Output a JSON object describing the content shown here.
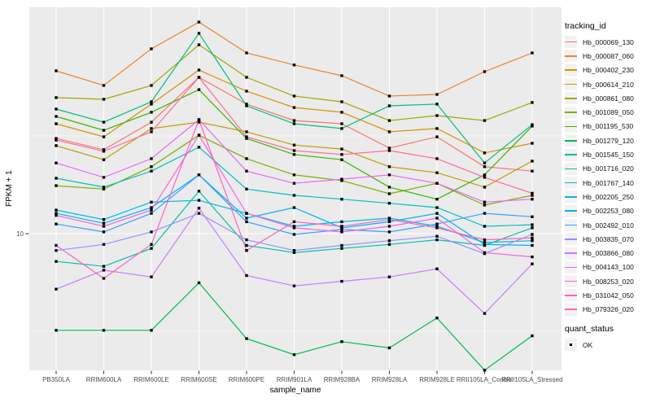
{
  "figure": {
    "y_axis": {
      "label": "FPKM + 1",
      "tick_label": "10"
    },
    "x_axis": {
      "label": "sample_name"
    },
    "legend": {
      "tracking_title": "tracking_id",
      "quant_title": "quant_status",
      "quant_items": [
        "OK"
      ]
    },
    "colors": {
      "panel_bg": "#EBEBEB",
      "grid_major": "#FFFFFF",
      "grid_minor": "#F7F7F7",
      "tick_mark": "#333333",
      "axis_text": "#4D4D4D",
      "title_text": "#000000",
      "point": "#000000",
      "legend_key_bg": "#F2F2F2"
    }
  },
  "chart_data": {
    "type": "line",
    "x_type": "categorical",
    "y_scale": "log10",
    "title": "",
    "xlabel": "sample_name",
    "ylabel": "FPKM + 1",
    "y_ticks": [
      10
    ],
    "y_minor_ticks": [
      3.162,
      31.62
    ],
    "ylim_approx": [
      2.0,
      145
    ],
    "grid": "ggplot-default",
    "legend_position": "right",
    "point_shape": "black-square",
    "quant_status": {
      "title": "quant_status",
      "values": [
        "OK"
      ]
    },
    "categories": [
      "PB350LA",
      "RRIM600LA",
      "RRIM600LE",
      "RRIM600SE",
      "RRIM600PE",
      "RRIM901LA",
      "RRIM928BA",
      "RRIM928LA",
      "RRIM928LE",
      "RRII105LA_Control",
      "RRII105LA_Stressed"
    ],
    "series": [
      {
        "name": "Hb_000069_130",
        "color": "#F8766D",
        "values": [
          30.7,
          26.9,
          37.2,
          63.1,
          46.0,
          37.9,
          36.5,
          27.4,
          31.3,
          22.0,
          20.9
        ]
      },
      {
        "name": "Hb_000087_060",
        "color": "#EA8331",
        "values": [
          68.1,
          57.3,
          88.3,
          121.0,
          84.1,
          73.0,
          64.3,
          50.6,
          51.6,
          67.5,
          84.1
        ]
      },
      {
        "name": "Hb_000402_230",
        "color": "#D89000",
        "values": [
          36.5,
          31.3,
          46.0,
          68.8,
          53.6,
          44.2,
          41.8,
          33.2,
          34.5,
          25.9,
          29.0
        ]
      },
      {
        "name": "Hb_000614_210",
        "color": "#C09B00",
        "values": [
          28.2,
          23.9,
          34.5,
          37.2,
          33.2,
          28.4,
          27.1,
          22.0,
          20.5,
          17.3,
          23.5
        ]
      },
      {
        "name": "Hb_000861_080",
        "color": "#A3A500",
        "values": [
          49.7,
          48.7,
          57.3,
          92.6,
          63.1,
          50.6,
          47.3,
          37.9,
          40.2,
          37.9,
          46.9
        ]
      },
      {
        "name": "Hb_001089_050",
        "color": "#7CAE00",
        "values": [
          17.6,
          16.9,
          22.0,
          31.9,
          24.2,
          20.0,
          18.7,
          16.0,
          18.1,
          14.0,
          15.7
        ]
      },
      {
        "name": "Hb_001195_530",
        "color": "#39B600",
        "values": [
          39.8,
          33.8,
          41.8,
          54.6,
          30.7,
          25.4,
          23.9,
          17.3,
          15.0,
          20.0,
          35.5
        ]
      },
      {
        "name": "Hb_001279_120",
        "color": "#00BB4E",
        "values": [
          3.2,
          3.2,
          3.2,
          5.6,
          2.9,
          2.4,
          2.8,
          2.6,
          3.7,
          2.0,
          3.0
        ]
      },
      {
        "name": "Hb_001545_150",
        "color": "#00BF7D",
        "values": [
          43.4,
          37.2,
          47.3,
          106.0,
          45.1,
          36.5,
          34.5,
          45.1,
          46.0,
          23.0,
          36.1
        ]
      },
      {
        "name": "Hb_001716_020",
        "color": "#00C1A3",
        "values": [
          7.2,
          6.8,
          8.4,
          16.5,
          8.7,
          8.0,
          8.4,
          8.8,
          9.3,
          8.7,
          10.7
        ]
      },
      {
        "name": "Hb_001767_140",
        "color": "#00BFC4",
        "values": [
          19.2,
          17.3,
          20.9,
          27.7,
          16.9,
          15.7,
          15.0,
          14.3,
          13.6,
          10.9,
          11.1
        ]
      },
      {
        "name": "Hb_002205_250",
        "color": "#00BAE0",
        "values": [
          13.2,
          11.8,
          14.5,
          14.8,
          12.7,
          10.9,
          11.5,
          12.0,
          10.9,
          9.0,
          9.2
        ]
      },
      {
        "name": "Hb_002253_080",
        "color": "#00B0F6",
        "values": [
          12.7,
          11.3,
          13.6,
          20.0,
          12.0,
          13.6,
          10.7,
          11.5,
          12.7,
          8.8,
          8.7
        ]
      },
      {
        "name": "Hb_002492_010",
        "color": "#35A2FF",
        "values": [
          11.2,
          10.2,
          12.7,
          20.0,
          11.5,
          9.9,
          10.5,
          10.2,
          11.2,
          12.7,
          12.2
        ]
      },
      {
        "name": "Hb_003835_070",
        "color": "#9590FF",
        "values": [
          8.2,
          8.8,
          10.2,
          12.7,
          9.3,
          8.2,
          8.7,
          9.2,
          9.7,
          7.9,
          9.9
        ]
      },
      {
        "name": "Hb_003866_080",
        "color": "#C77CFF",
        "values": [
          5.2,
          6.5,
          6.0,
          13.5,
          6.1,
          5.4,
          5.7,
          6.0,
          6.6,
          3.9,
          7.0
        ]
      },
      {
        "name": "Hb_004143_100",
        "color": "#E76BF3",
        "values": [
          23.0,
          19.4,
          24.2,
          38.3,
          20.9,
          18.1,
          19.0,
          20.0,
          18.1,
          14.5,
          15.0
        ]
      },
      {
        "name": "Hb_008253_020",
        "color": "#FA62DB",
        "values": [
          12.4,
          10.9,
          13.2,
          31.9,
          12.7,
          10.7,
          10.2,
          10.9,
          12.0,
          8.0,
          7.6
        ]
      },
      {
        "name": "Hb_031042_050",
        "color": "#FF62BC",
        "values": [
          8.7,
          5.9,
          8.8,
          38.3,
          8.2,
          11.5,
          10.9,
          11.8,
          10.7,
          9.3,
          9.5
        ]
      },
      {
        "name": "Hb_079326_020",
        "color": "#FF6A98",
        "values": [
          30.1,
          26.4,
          33.2,
          63.1,
          31.3,
          26.6,
          25.4,
          26.6,
          24.2,
          19.4,
          16.1
        ]
      }
    ]
  }
}
